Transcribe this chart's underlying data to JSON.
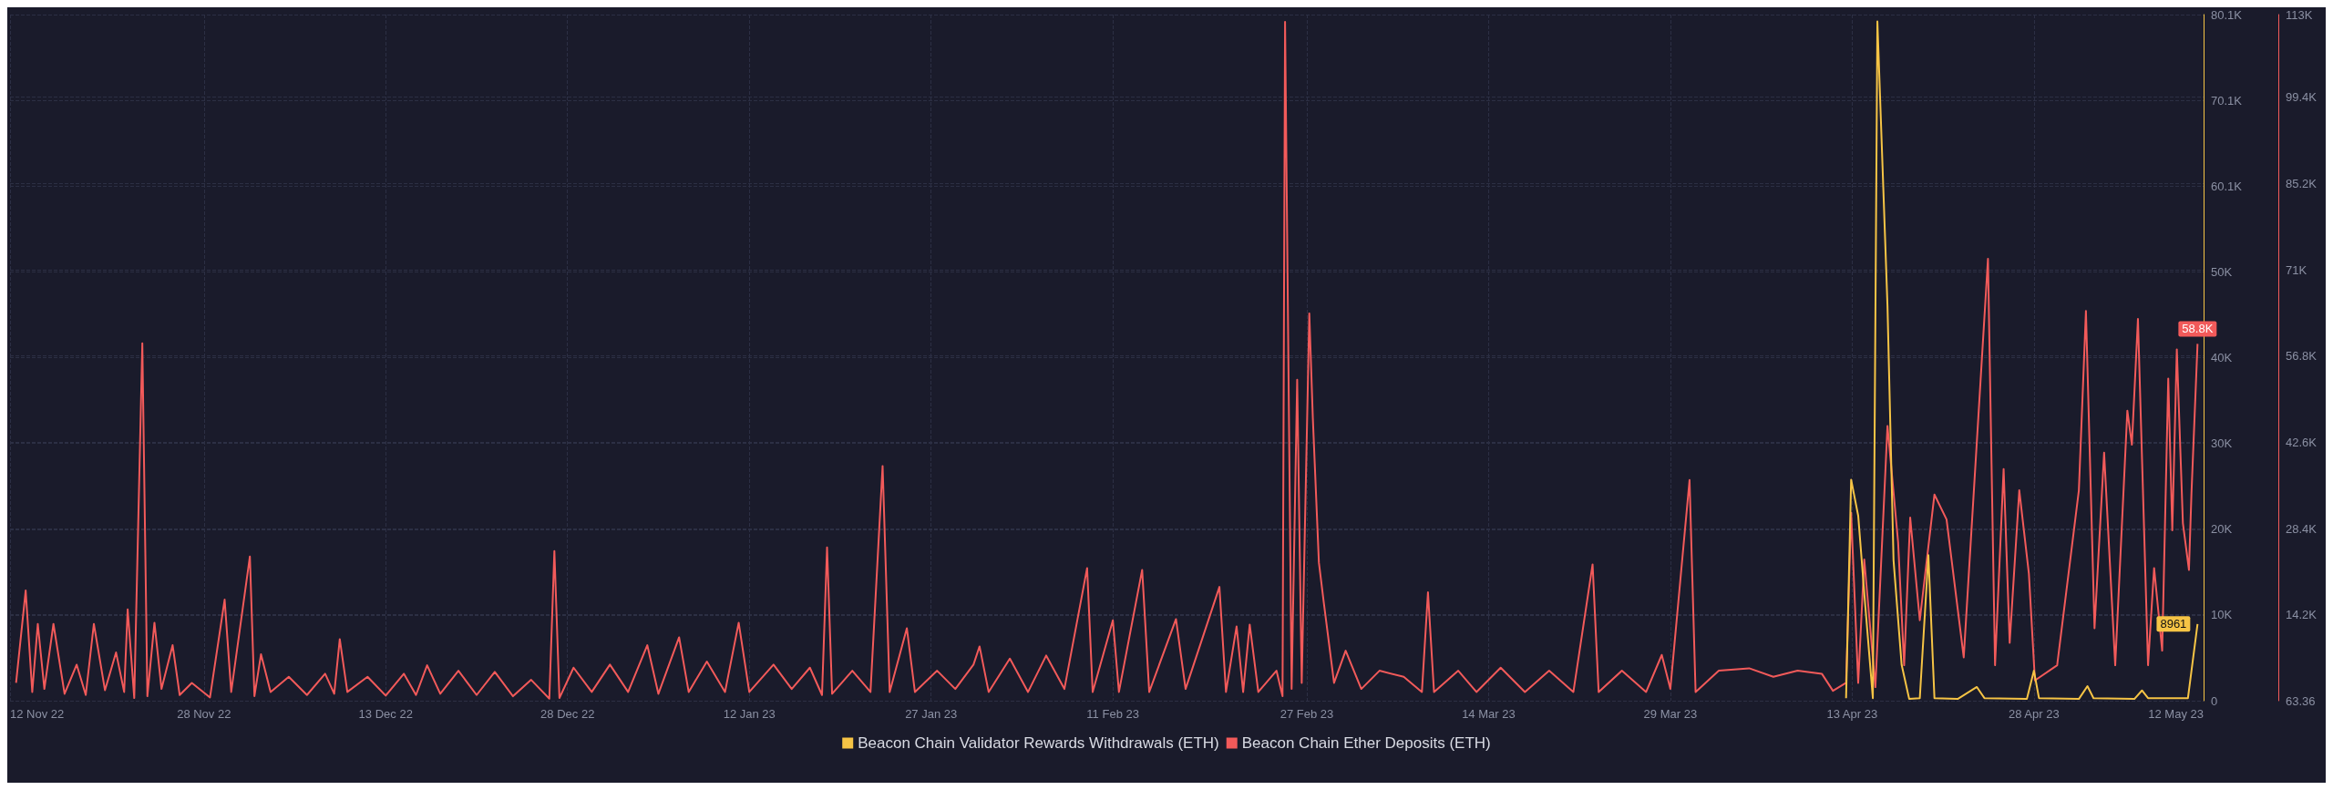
{
  "chart_data": {
    "type": "line",
    "legend": "bottom",
    "grid": true,
    "marker": "none",
    "line_style": "solid",
    "xlim": [
      "2022-11-12",
      "2023-05-12"
    ],
    "xticks": [
      {
        "value": "2022-11-12",
        "label": "12 Nov 22"
      },
      {
        "value": "2022-11-28",
        "label": "28 Nov 22"
      },
      {
        "value": "2022-12-13",
        "label": "13 Dec 22"
      },
      {
        "value": "2022-12-28",
        "label": "28 Dec 22"
      },
      {
        "value": "2023-01-12",
        "label": "12 Jan 23"
      },
      {
        "value": "2023-01-27",
        "label": "27 Jan 23"
      },
      {
        "value": "2023-02-11",
        "label": "11 Feb 23"
      },
      {
        "value": "2023-02-27",
        "label": "27 Feb 23"
      },
      {
        "value": "2023-03-14",
        "label": "14 Mar 23"
      },
      {
        "value": "2023-03-29",
        "label": "29 Mar 23"
      },
      {
        "value": "2023-04-13",
        "label": "13 Apr 23"
      },
      {
        "value": "2023-04-28",
        "label": "28 Apr 23"
      },
      {
        "value": "2023-05-12",
        "label": "12 May 23"
      }
    ],
    "ylim": [
      0,
      80100
    ],
    "yticks": [
      0,
      {
        "value": 10012.5,
        "label": "10K"
      },
      {
        "value": 20025,
        "label": "20K"
      },
      {
        "value": 30037.5,
        "label": "30K"
      },
      {
        "value": 40050,
        "label": "40K"
      },
      {
        "value": 50062.5,
        "label": "50K"
      },
      {
        "value": 60075,
        "label": "60.1K"
      },
      {
        "value": 70087.5,
        "label": "70.1K"
      },
      {
        "value": 80100,
        "label": "80.1K"
      }
    ],
    "y2lim": [
      63.36,
      113000
    ],
    "y2ticks": [
      63.36,
      {
        "value": 14200,
        "label": "14.2K"
      },
      {
        "value": 28400,
        "label": "28.4K"
      },
      {
        "value": 42600,
        "label": "42.6K"
      },
      {
        "value": 56800,
        "label": "56.8K"
      },
      {
        "value": 71000,
        "label": "71K"
      },
      {
        "value": 85200,
        "label": "85.2K"
      },
      {
        "value": 99400,
        "label": "99.4K"
      },
      {
        "value": 113000,
        "label": "113K"
      }
    ],
    "series": [
      {
        "name": "Beacon Chain Validator Rewards Withdrawals (ETH)",
        "color": "#f6c445",
        "axis": "y",
        "x": [
          "2023-04-12T12:00",
          "2023-04-12T22:00",
          "2023-04-13T12:00",
          "2023-04-14T02:00",
          "2023-04-14T17:00",
          "2023-04-15T02:00",
          "2023-04-15T22:00",
          "2023-04-16T10:00",
          "2023-04-17T02:00",
          "2023-04-17T17:00",
          "2023-04-18T14:00",
          "2023-04-19T07:00",
          "2023-04-19T19:00",
          "2023-04-21T17:00",
          "2023-04-23T07:00",
          "2023-04-23T22:00",
          "2023-04-27T10:00",
          "2023-04-28T00:00",
          "2023-04-28T10:00",
          "2023-05-01T17:00",
          "2023-05-02T10:00",
          "2023-05-02T22:00",
          "2023-05-06T07:00",
          "2023-05-06T22:00",
          "2023-05-07T10:00",
          "2023-05-10T17:00",
          "2023-05-11T12:00"
        ],
        "values": [
          300,
          25800,
          21600,
          11100,
          300,
          79300,
          46100,
          16400,
          4200,
          200,
          300,
          17000,
          300,
          200,
          1600,
          300,
          200,
          3500,
          300,
          200,
          1700,
          300,
          200,
          1200,
          300,
          300,
          8961
        ],
        "value_labels": [
          null,
          null,
          null,
          null,
          null,
          null,
          null,
          null,
          null,
          null,
          null,
          null,
          null,
          null,
          null,
          null,
          null,
          null,
          null,
          null,
          null,
          null,
          null,
          null,
          null,
          null,
          "8961"
        ]
      },
      {
        "name": "Beacon Chain Ether Deposits (ETH)",
        "color": "#f25a5a",
        "axis": "y2",
        "x": [
          "2022-11-12T12:00",
          "2022-11-13T07:00",
          "2022-11-13T20:00",
          "2022-11-14T07:00",
          "2022-11-14T20:00",
          "2022-11-15T14:00",
          "2022-11-16T12:00",
          "2022-11-17T12:00",
          "2022-11-18T06:00",
          "2022-11-18T22:00",
          "2022-11-19T20:00",
          "2022-11-20T18:00",
          "2022-11-21T10:00",
          "2022-11-21T17:00",
          "2022-11-22T06:00",
          "2022-11-22T22:00",
          "2022-11-23T08:00",
          "2022-11-23T22:00",
          "2022-11-24T12:00",
          "2022-11-25T10:00",
          "2022-11-26T00:00",
          "2022-11-27T00:00",
          "2022-11-28T12:00",
          "2022-11-29T17:00",
          "2022-11-30T06:00",
          "2022-12-01T19:00",
          "2022-12-02T04:00",
          "2022-12-02T17:00",
          "2022-12-03T12:00",
          "2022-12-05T00:00",
          "2022-12-06T12:00",
          "2022-12-08T00:00",
          "2022-12-08T18:00",
          "2022-12-09T05:00",
          "2022-12-09T20:00",
          "2022-12-11T12:00",
          "2022-12-13T00:00",
          "2022-12-14T12:00",
          "2022-12-15T12:00",
          "2022-12-16T10:00",
          "2022-12-17T12:00",
          "2022-12-19T00:00",
          "2022-12-20T12:00",
          "2022-12-22T00:00",
          "2022-12-23T12:00",
          "2022-12-25T00:00",
          "2022-12-26T12:00",
          "2022-12-26T22:00",
          "2022-12-27T08:00",
          "2022-12-28T12:00",
          "2022-12-30T00:00",
          "2022-12-31T12:00",
          "2023-01-02T00:00",
          "2023-01-03T14:00",
          "2023-01-04T12:00",
          "2023-01-06T05:00",
          "2023-01-07T00:00",
          "2023-01-08T12:00",
          "2023-01-10T00:00",
          "2023-01-11T03:00",
          "2023-01-12T00:00",
          "2023-01-14T00:00",
          "2023-01-15T12:00",
          "2023-01-17T00:00",
          "2023-01-18T00:00",
          "2023-01-18T10:00",
          "2023-01-18T20:00",
          "2023-01-20T12:00",
          "2023-01-22T00:00",
          "2023-01-23T00:00",
          "2023-01-23T14:00",
          "2023-01-25T00:00",
          "2023-01-25T16:00",
          "2023-01-27T12:00",
          "2023-01-29T00:00",
          "2023-01-30T12:00",
          "2023-01-31T00:00",
          "2023-01-31T18:00",
          "2023-02-02T12:00",
          "2023-02-04T00:00",
          "2023-02-05T12:00",
          "2023-02-07T00:00",
          "2023-02-08T21:00",
          "2023-02-09T08:00",
          "2023-02-11T00:00",
          "2023-02-11T12:00",
          "2023-02-13T10:00",
          "2023-02-14T00:00",
          "2023-02-16T05:00",
          "2023-02-17T00:00",
          "2023-02-19T19:00",
          "2023-02-20T08:00",
          "2023-02-21T05:00",
          "2023-02-21T18:00",
          "2023-02-22T07:00",
          "2023-02-23T00:00",
          "2023-02-24T12:00",
          "2023-02-25T00:00",
          "2023-02-25T05:00",
          "2023-02-25T18:00",
          "2023-02-26T05:00",
          "2023-02-26T14:00",
          "2023-02-27T05:00",
          "2023-02-27T12:00",
          "2023-02-28T00:00",
          "2023-02-28T10:00",
          "2023-03-01T06:00",
          "2023-03-02T05:00",
          "2023-03-03T12:00",
          "2023-03-05T00:00",
          "2023-03-07T00:00",
          "2023-03-08T12:00",
          "2023-03-09T00:00",
          "2023-03-09T12:00",
          "2023-03-11T12:00",
          "2023-03-13T00:00",
          "2023-03-15T00:00",
          "2023-03-17T00:00",
          "2023-03-19T00:00",
          "2023-03-21T00:00",
          "2023-03-22T14:00",
          "2023-03-23T02:00",
          "2023-03-25T00:00",
          "2023-03-27T00:00",
          "2023-03-28T07:00",
          "2023-03-29T00:00",
          "2023-03-30T14:00",
          "2023-03-31T02:00",
          "2023-04-02T00:00",
          "2023-04-04T12:00",
          "2023-04-06T12:00",
          "2023-04-08T12:00",
          "2023-04-10T12:00",
          "2023-04-11T10:00",
          "2023-04-12T12:00",
          "2023-04-12T22:00",
          "2023-04-13T12:00",
          "2023-04-14T00:00",
          "2023-04-14T22:00",
          "2023-04-15T22:00",
          "2023-04-16T19:00",
          "2023-04-17T07:00",
          "2023-04-17T19:00",
          "2023-04-18T14:00",
          "2023-04-19T19:00",
          "2023-04-20T19:00",
          "2023-04-22T05:00",
          "2023-04-24T05:00",
          "2023-04-24T19:00",
          "2023-04-25T12:00",
          "2023-04-26T00:00",
          "2023-04-26T19:00",
          "2023-04-27T14:00",
          "2023-04-28T02:00",
          "2023-04-29T22:00",
          "2023-05-01T17:00",
          "2023-05-02T07:00",
          "2023-05-03T00:00",
          "2023-05-03T19:00",
          "2023-05-04T17:00",
          "2023-05-05T17:00",
          "2023-05-06T02:00",
          "2023-05-06T14:00",
          "2023-05-07T10:00",
          "2023-05-07T22:00",
          "2023-05-08T14:00",
          "2023-05-09T02:00",
          "2023-05-09T10:00",
          "2023-05-09T19:00",
          "2023-05-10T07:00",
          "2023-05-10T19:00",
          "2023-05-11T00:00",
          "2023-05-11T12:00"
        ],
        "values": [
          3000,
          18200,
          1500,
          12700,
          2000,
          12700,
          1200,
          6000,
          1000,
          12700,
          1800,
          8000,
          1500,
          15100,
          500,
          58900,
          800,
          12900,
          2000,
          9200,
          1000,
          3000,
          600,
          16700,
          1500,
          23800,
          800,
          7700,
          1500,
          4000,
          1000,
          4500,
          1200,
          10200,
          1500,
          4000,
          900,
          4500,
          1000,
          5900,
          1200,
          5000,
          1000,
          4800,
          800,
          3500,
          400,
          24700,
          500,
          5500,
          1500,
          6000,
          1500,
          9200,
          1200,
          10500,
          1500,
          6500,
          1500,
          12900,
          1500,
          6000,
          2000,
          5500,
          1000,
          25300,
          1200,
          5000,
          1500,
          38700,
          1500,
          12000,
          1500,
          5000,
          2000,
          6000,
          9000,
          1500,
          7000,
          1500,
          7500,
          2000,
          21900,
          1500,
          13300,
          1500,
          21600,
          1500,
          13500,
          2000,
          18800,
          1500,
          12300,
          1500,
          12600,
          1500,
          5000,
          800,
          111800,
          2000,
          52900,
          3000,
          63800,
          46600,
          22800,
          16000,
          3000,
          8300,
          2000,
          5000,
          4000,
          1500,
          17900,
          1500,
          5000,
          1500,
          5500,
          1500,
          5000,
          1500,
          22500,
          1500,
          5000,
          1500,
          7600,
          2000,
          36400,
          1500,
          5000,
          5400,
          4000,
          5000,
          4500,
          1700,
          3000,
          31000,
          3000,
          23300,
          2300,
          45300,
          26200,
          5900,
          30200,
          13300,
          34000,
          29900,
          7200,
          72800,
          5900,
          38200,
          9600,
          34700,
          21000,
          3400,
          5900,
          34700,
          64200,
          12000,
          40900,
          5900,
          47800,
          42200,
          62900,
          5900,
          21900,
          8300,
          53100,
          28100,
          57900,
          29300,
          21600,
          34200,
          58800
        ],
        "value_labels": [
          null,
          null,
          null,
          null,
          null,
          null,
          null,
          null,
          null,
          null,
          null,
          null,
          null,
          null,
          null,
          null,
          null,
          null,
          null,
          null,
          null,
          null,
          null,
          null,
          null,
          null,
          null,
          null,
          null,
          null,
          null,
          null,
          null,
          null,
          null,
          null,
          null,
          null,
          null,
          null,
          null,
          null,
          null,
          null,
          null,
          null,
          null,
          null,
          null,
          null,
          null,
          null,
          null,
          null,
          null,
          null,
          null,
          null,
          null,
          null,
          null,
          null,
          null,
          null,
          null,
          null,
          null,
          null,
          null,
          null,
          null,
          null,
          null,
          null,
          null,
          null,
          null,
          null,
          null,
          null,
          null,
          null,
          null,
          null,
          null,
          null,
          null,
          null,
          null,
          null,
          null,
          null,
          null,
          null,
          null,
          null,
          null,
          null,
          null,
          null,
          null,
          null,
          null,
          null,
          null,
          null,
          null,
          null,
          null,
          null,
          null,
          null,
          null,
          null,
          null,
          null,
          null,
          null,
          null,
          null,
          null,
          null,
          null,
          null,
          null,
          null,
          null,
          null,
          null,
          null,
          null,
          null,
          null,
          null,
          null,
          null,
          null,
          null,
          null,
          null,
          null,
          null,
          null,
          null,
          null,
          null,
          null,
          null,
          null,
          null,
          null,
          null,
          null,
          null,
          null,
          null,
          null,
          null,
          null,
          null,
          null,
          null,
          null,
          null,
          null,
          null,
          null,
          null,
          null,
          null,
          null,
          null,
          "58.8K"
        ]
      }
    ]
  }
}
